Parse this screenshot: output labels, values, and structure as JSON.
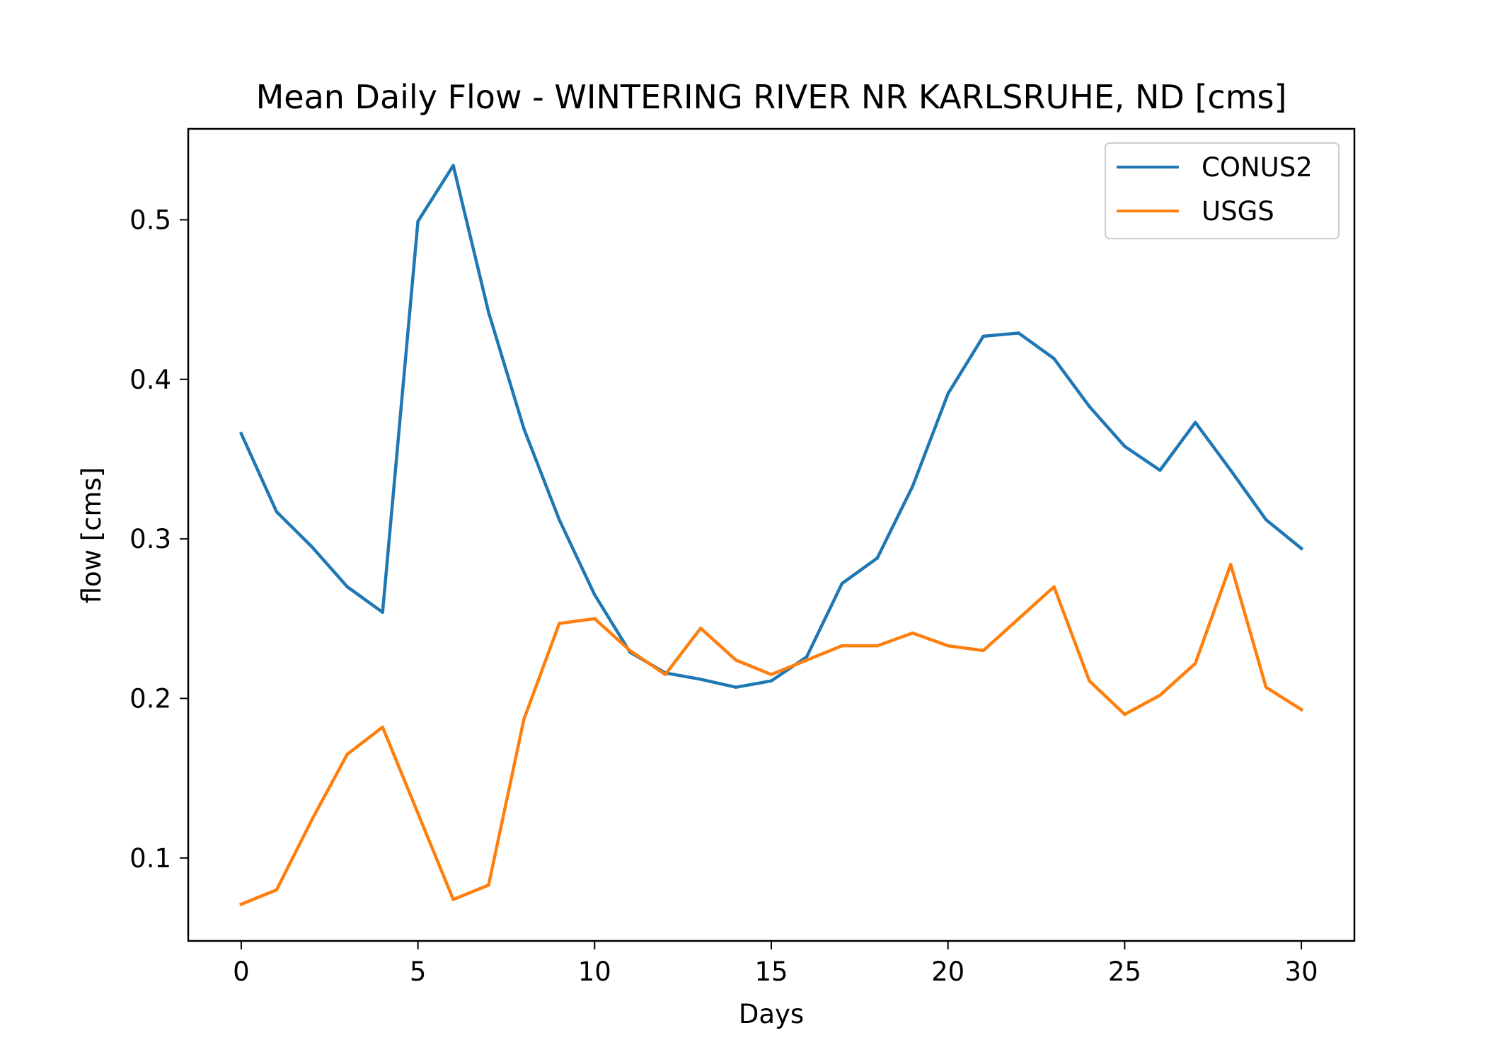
{
  "chart_data": {
    "type": "line",
    "title": "Mean Daily Flow - WINTERING RIVER NR KARLSRUHE, ND [cms]",
    "xlabel": "Days",
    "ylabel": "flow [cms]",
    "xlim": [
      -1.5,
      31.5
    ],
    "ylim": [
      0.048,
      0.557
    ],
    "xticks": [
      0,
      5,
      10,
      15,
      20,
      25,
      30
    ],
    "yticks": [
      0.1,
      0.2,
      0.3,
      0.4,
      0.5
    ],
    "xtick_labels": [
      "0",
      "5",
      "10",
      "15",
      "20",
      "25",
      "30"
    ],
    "ytick_labels": [
      "0.1",
      "0.2",
      "0.3",
      "0.4",
      "0.5"
    ],
    "grid": false,
    "legend_position": "upper right",
    "x": [
      0,
      1,
      2,
      3,
      4,
      5,
      6,
      7,
      8,
      9,
      10,
      11,
      12,
      13,
      14,
      15,
      16,
      17,
      18,
      19,
      20,
      21,
      22,
      23,
      24,
      25,
      26,
      27,
      28,
      29,
      30
    ],
    "series": [
      {
        "name": "CONUS2",
        "color": "#1f77b4",
        "values": [
          0.366,
          0.317,
          0.295,
          0.27,
          0.254,
          0.499,
          0.534,
          0.442,
          0.369,
          0.312,
          0.265,
          0.229,
          0.216,
          0.212,
          0.207,
          0.211,
          0.226,
          0.272,
          0.288,
          0.333,
          0.391,
          0.427,
          0.429,
          0.413,
          0.383,
          0.358,
          0.343,
          0.373,
          0.343,
          0.312,
          0.294
        ]
      },
      {
        "name": "USGS",
        "color": "#ff7f0e",
        "values": [
          0.071,
          0.08,
          0.124,
          0.165,
          0.182,
          0.128,
          0.074,
          0.083,
          0.187,
          0.247,
          0.25,
          0.23,
          0.215,
          0.244,
          0.224,
          0.215,
          0.224,
          0.233,
          0.233,
          0.241,
          0.233,
          0.23,
          0.25,
          0.27,
          0.211,
          0.19,
          0.202,
          0.222,
          0.284,
          0.207,
          0.193
        ]
      }
    ]
  }
}
